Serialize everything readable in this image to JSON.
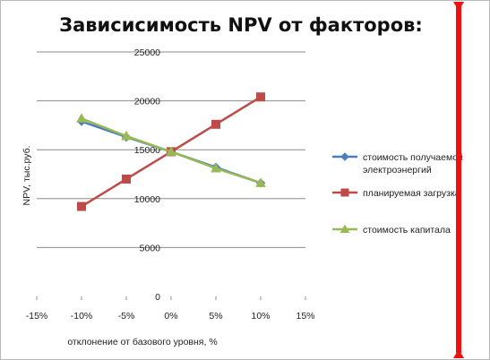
{
  "chart_data": {
    "type": "line",
    "title": "Зависисимость NPV от факторов:",
    "xlabel": "отклонение от базового уровня, %",
    "ylabel": "NPV, тыс.руб.",
    "x_tick_labels": [
      "-15%",
      "-10%",
      "-5%",
      "0%",
      "5%",
      "10%",
      "15%"
    ],
    "x_ticks": [
      -15,
      -10,
      -5,
      0,
      5,
      10,
      15
    ],
    "y_tick_labels": [
      "0",
      "5000",
      "10000",
      "15000",
      "20000",
      "25000"
    ],
    "y_ticks": [
      0,
      5000,
      10000,
      15000,
      20000,
      25000
    ],
    "xlim": [
      -15,
      15
    ],
    "ylim": [
      0,
      25000
    ],
    "grid": "horizontal",
    "legend_position": "right",
    "series": [
      {
        "name": "стоимость получаемой электроэнергий",
        "legend_lines": [
          "стоимость получаемой",
          "электроэнергий"
        ],
        "marker": "diamond",
        "color": "#4a7ebb",
        "x": [
          -10,
          -5,
          0,
          5,
          10
        ],
        "values": [
          17900,
          16300,
          14800,
          13200,
          11600
        ]
      },
      {
        "name": "планируемая загрузка",
        "legend_lines": [
          "планируемая загрузка"
        ],
        "marker": "square",
        "color": "#be4b48",
        "x": [
          -10,
          -5,
          0,
          5,
          10
        ],
        "values": [
          9200,
          12000,
          14800,
          17600,
          20400
        ]
      },
      {
        "name": "стоимость капитала",
        "legend_lines": [
          "стоимость капитала"
        ],
        "marker": "triangle",
        "color": "#98b954",
        "x": [
          -10,
          -5,
          0,
          5,
          10
        ],
        "values": [
          18200,
          16400,
          14800,
          13100,
          11600
        ]
      }
    ]
  },
  "colors": {
    "gridline": "#8c8c8c",
    "cursor_line": "#ee1111"
  }
}
